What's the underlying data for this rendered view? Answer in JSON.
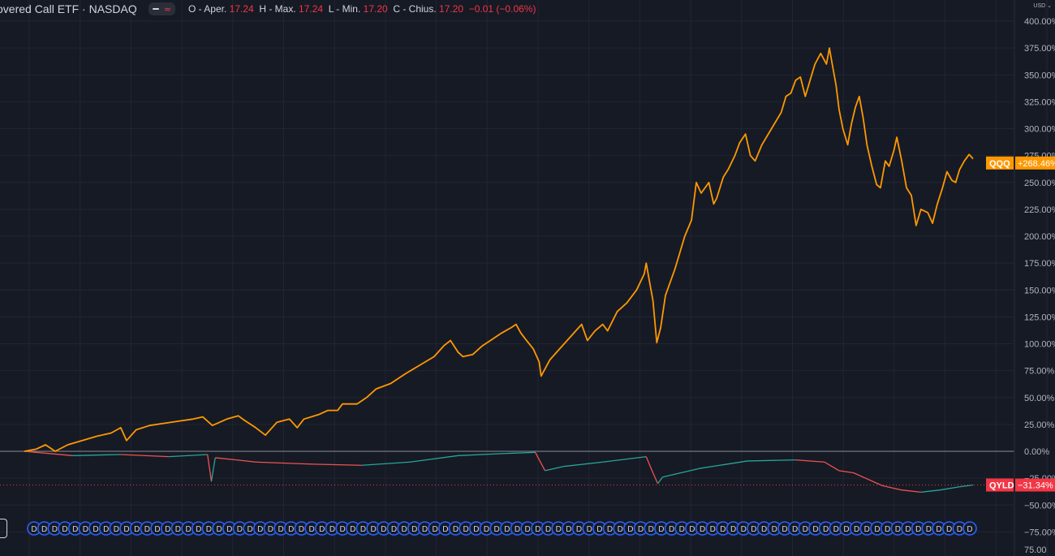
{
  "header": {
    "title": "overed Call ETF · NASDAQ",
    "ohlc": {
      "o_label": "O - Aper.",
      "o_value": "17.24",
      "h_label": "H - Max.",
      "h_value": "17.24",
      "l_label": "L - Min.",
      "l_value": "17.20",
      "c_label": "C - Chius.",
      "c_value": "17.20",
      "change": "−0.01 (−0.06%)"
    }
  },
  "currency": "USD",
  "colors": {
    "background": "#161a25",
    "qqq": "#ff9800",
    "qyld_up": "#26a69a",
    "qyld_down": "#ef5350",
    "qyld_label": "#f23645",
    "event_circle": "#2962ff",
    "grid": "#232632",
    "zero_line": "#8a8d96"
  },
  "chart_data": {
    "type": "line",
    "x_range": [
      0,
      1
    ],
    "ylim": [
      -75,
      400
    ],
    "y_ticks": [
      "400.00%",
      "375.00%",
      "350.00%",
      "325.00%",
      "300.00%",
      "275.00%",
      "250.00%",
      "225.00%",
      "200.00%",
      "175.00%",
      "150.00%",
      "125.00%",
      "100.00%",
      "75.00%",
      "50.00%",
      "25.00%",
      "0.00%",
      "−25.00%",
      "−50.00%",
      "−75.00%"
    ],
    "y_tick_values": [
      400,
      375,
      350,
      325,
      300,
      275,
      250,
      225,
      200,
      175,
      150,
      125,
      100,
      75,
      50,
      25,
      0,
      -25,
      -50,
      -75
    ],
    "bottom_tick": "75.00",
    "grid": true,
    "series": [
      {
        "name": "QQQ",
        "label": "+268.46%",
        "last_value": 268.46,
        "color": "#ff9800",
        "points": [
          [
            0.0,
            0
          ],
          [
            0.012,
            2
          ],
          [
            0.022,
            6
          ],
          [
            0.032,
            0
          ],
          [
            0.045,
            6
          ],
          [
            0.06,
            10
          ],
          [
            0.075,
            14
          ],
          [
            0.09,
            17
          ],
          [
            0.1,
            22
          ],
          [
            0.106,
            10
          ],
          [
            0.116,
            20
          ],
          [
            0.13,
            24
          ],
          [
            0.145,
            26
          ],
          [
            0.16,
            28
          ],
          [
            0.175,
            30
          ],
          [
            0.185,
            32
          ],
          [
            0.195,
            24
          ],
          [
            0.21,
            30
          ],
          [
            0.222,
            33
          ],
          [
            0.228,
            29
          ],
          [
            0.24,
            22
          ],
          [
            0.25,
            15
          ],
          [
            0.262,
            27
          ],
          [
            0.275,
            30
          ],
          [
            0.283,
            22
          ],
          [
            0.29,
            30
          ],
          [
            0.305,
            34
          ],
          [
            0.315,
            38
          ],
          [
            0.325,
            38
          ],
          [
            0.33,
            44
          ],
          [
            0.345,
            44
          ],
          [
            0.355,
            50
          ],
          [
            0.365,
            58
          ],
          [
            0.38,
            63
          ],
          [
            0.395,
            72
          ],
          [
            0.41,
            80
          ],
          [
            0.425,
            88
          ],
          [
            0.435,
            98
          ],
          [
            0.442,
            103
          ],
          [
            0.45,
            92
          ],
          [
            0.455,
            88
          ],
          [
            0.465,
            90
          ],
          [
            0.475,
            98
          ],
          [
            0.485,
            104
          ],
          [
            0.495,
            110
          ],
          [
            0.505,
            115
          ],
          [
            0.51,
            118
          ],
          [
            0.515,
            110
          ],
          [
            0.52,
            104
          ],
          [
            0.528,
            95
          ],
          [
            0.534,
            83
          ],
          [
            0.536,
            70
          ],
          [
            0.545,
            85
          ],
          [
            0.555,
            95
          ],
          [
            0.565,
            105
          ],
          [
            0.572,
            112
          ],
          [
            0.578,
            118
          ],
          [
            0.584,
            103
          ],
          [
            0.592,
            112
          ],
          [
            0.6,
            118
          ],
          [
            0.605,
            112
          ],
          [
            0.615,
            130
          ],
          [
            0.625,
            138
          ],
          [
            0.635,
            150
          ],
          [
            0.643,
            165
          ],
          [
            0.645,
            175
          ],
          [
            0.648,
            160
          ],
          [
            0.652,
            140
          ],
          [
            0.656,
            101
          ],
          [
            0.66,
            115
          ],
          [
            0.665,
            145
          ],
          [
            0.675,
            170
          ],
          [
            0.685,
            200
          ],
          [
            0.692,
            215
          ],
          [
            0.697,
            250
          ],
          [
            0.702,
            240
          ],
          [
            0.71,
            250
          ],
          [
            0.715,
            230
          ],
          [
            0.718,
            235
          ],
          [
            0.725,
            255
          ],
          [
            0.73,
            262
          ],
          [
            0.737,
            275
          ],
          [
            0.742,
            287
          ],
          [
            0.748,
            295
          ],
          [
            0.753,
            275
          ],
          [
            0.758,
            270
          ],
          [
            0.765,
            285
          ],
          [
            0.775,
            300
          ],
          [
            0.785,
            315
          ],
          [
            0.79,
            330
          ],
          [
            0.795,
            333
          ],
          [
            0.8,
            345
          ],
          [
            0.805,
            348
          ],
          [
            0.81,
            330
          ],
          [
            0.815,
            345
          ],
          [
            0.82,
            360
          ],
          [
            0.826,
            370
          ],
          [
            0.832,
            360
          ],
          [
            0.835,
            375
          ],
          [
            0.838,
            360
          ],
          [
            0.842,
            340
          ],
          [
            0.845,
            318
          ],
          [
            0.849,
            300
          ],
          [
            0.854,
            285
          ],
          [
            0.858,
            305
          ],
          [
            0.862,
            320
          ],
          [
            0.866,
            330
          ],
          [
            0.87,
            310
          ],
          [
            0.874,
            285
          ],
          [
            0.879,
            265
          ],
          [
            0.884,
            248
          ],
          [
            0.888,
            245
          ],
          [
            0.893,
            270
          ],
          [
            0.897,
            265
          ],
          [
            0.902,
            280
          ],
          [
            0.905,
            292
          ],
          [
            0.91,
            270
          ],
          [
            0.915,
            245
          ],
          [
            0.92,
            238
          ],
          [
            0.925,
            210
          ],
          [
            0.93,
            225
          ],
          [
            0.937,
            222
          ],
          [
            0.942,
            212
          ],
          [
            0.947,
            230
          ],
          [
            0.952,
            244
          ],
          [
            0.957,
            260
          ],
          [
            0.962,
            252
          ],
          [
            0.966,
            250
          ],
          [
            0.97,
            262
          ],
          [
            0.975,
            270
          ],
          [
            0.98,
            276
          ],
          [
            0.984,
            272
          ]
        ]
      },
      {
        "name": "QYLD",
        "label": "−31.34%",
        "last_value": -31.34,
        "color": "#26a69a",
        "points": [
          [
            0.0,
            0
          ],
          [
            0.05,
            -4
          ],
          [
            0.1,
            -3
          ],
          [
            0.15,
            -5
          ],
          [
            0.19,
            -3
          ],
          [
            0.194,
            -28
          ],
          [
            0.198,
            -6
          ],
          [
            0.22,
            -8
          ],
          [
            0.24,
            -10
          ],
          [
            0.3,
            -12
          ],
          [
            0.35,
            -13
          ],
          [
            0.4,
            -10
          ],
          [
            0.45,
            -4
          ],
          [
            0.5,
            -2
          ],
          [
            0.53,
            -1
          ],
          [
            0.54,
            -18
          ],
          [
            0.56,
            -14
          ],
          [
            0.6,
            -10
          ],
          [
            0.645,
            -5
          ],
          [
            0.652,
            -20
          ],
          [
            0.657,
            -30
          ],
          [
            0.662,
            -24
          ],
          [
            0.7,
            -16
          ],
          [
            0.75,
            -9
          ],
          [
            0.8,
            -8
          ],
          [
            0.83,
            -10
          ],
          [
            0.845,
            -18
          ],
          [
            0.86,
            -20
          ],
          [
            0.875,
            -26
          ],
          [
            0.89,
            -32
          ],
          [
            0.91,
            -36
          ],
          [
            0.93,
            -38
          ],
          [
            0.95,
            -36
          ],
          [
            0.97,
            -33
          ],
          [
            0.984,
            -31.34
          ]
        ]
      }
    ]
  },
  "dividend_marker_letter": "D",
  "dividend_count": 92
}
